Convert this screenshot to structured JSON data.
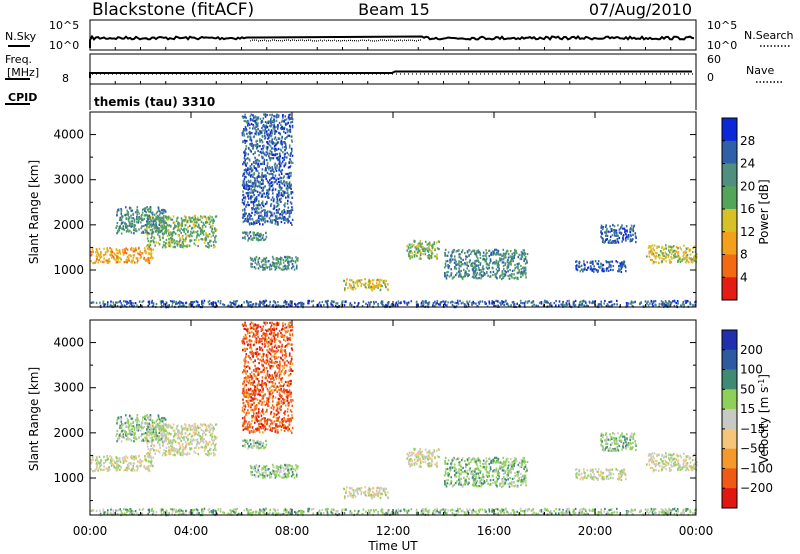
{
  "header": {
    "station": "Blackstone (fitACF)",
    "beam": "Beam 15",
    "date": "07/Aug/2010"
  },
  "noise_panel": {
    "left_label": "N.Sky",
    "right_label": "N.Search",
    "tick_top": "10^5",
    "tick_bottom": "10^0"
  },
  "freq_panel": {
    "left_label_1": "Freq.",
    "left_label_2": "[MHz]",
    "right_label": "Nave",
    "left_tick": "8",
    "right_tick_top": "60",
    "right_tick_bottom": "0"
  },
  "cpid_panel": {
    "label": "CPID",
    "text": "themis (tau) 3310"
  },
  "xaxis": {
    "label": "Time UT",
    "ticks": [
      "00:00",
      "04:00",
      "08:00",
      "12:00",
      "16:00",
      "20:00",
      "00:00"
    ]
  },
  "chart_data": [
    {
      "type": "heatmap",
      "variable": "Power",
      "ylabel": "Slant Range [km]",
      "ylim": [
        180,
        4500
      ],
      "yticks": [
        1000,
        2000,
        3000,
        4000
      ],
      "xlim_hours": [
        0,
        24
      ],
      "colorbar": {
        "label": "Power [dB]",
        "range": [
          0,
          32
        ],
        "ticks": [
          4,
          8,
          12,
          16,
          20,
          24,
          28
        ],
        "colors": [
          "#0b28d8",
          "#2e5fa8",
          "#4f8f7e",
          "#53a55a",
          "#d6c228",
          "#f5a01a",
          "#f46a14",
          "#e51c14"
        ]
      },
      "regions": [
        {
          "t0": 0.0,
          "t1": 2.5,
          "r0": 1150,
          "r1": 1500,
          "level": 5
        },
        {
          "t0": 2.2,
          "t1": 5.0,
          "r0": 1500,
          "r1": 2200,
          "level": 3
        },
        {
          "t0": 1.0,
          "t1": 3.0,
          "r0": 1800,
          "r1": 2400,
          "level": 2
        },
        {
          "t0": 6.0,
          "t1": 7.0,
          "r0": 1650,
          "r1": 1850,
          "level": 2
        },
        {
          "t0": 6.3,
          "t1": 8.2,
          "r0": 1000,
          "r1": 1300,
          "level": 2
        },
        {
          "t0": 10.0,
          "t1": 11.8,
          "r0": 550,
          "r1": 800,
          "level": 4
        },
        {
          "t0": 12.5,
          "t1": 13.8,
          "r0": 1250,
          "r1": 1650,
          "level": 3
        },
        {
          "t0": 14.0,
          "t1": 17.3,
          "r0": 800,
          "r1": 1450,
          "level": 2
        },
        {
          "t0": 19.2,
          "t1": 21.2,
          "r0": 950,
          "r1": 1200,
          "level": 1
        },
        {
          "t0": 20.2,
          "t1": 21.6,
          "r0": 1600,
          "r1": 2000,
          "level": 1
        },
        {
          "t0": 22.0,
          "t1": 24.0,
          "r0": 1150,
          "r1": 1550,
          "level": 4
        },
        {
          "t0": 0.0,
          "t1": 24.0,
          "r0": 180,
          "r1": 320,
          "level": 1
        },
        {
          "t0": 6.0,
          "t1": 8.0,
          "r0": 2000,
          "r1": 4450,
          "level": 1
        }
      ]
    },
    {
      "type": "heatmap",
      "variable": "Velocity",
      "ylabel": "Slant Range [km]",
      "ylim": [
        180,
        4500
      ],
      "yticks": [
        1000,
        2000,
        3000,
        4000
      ],
      "xlim_hours": [
        0,
        24
      ],
      "colorbar": {
        "label": "Velocity [m s^-1]",
        "ticks": [
          "200",
          "100",
          "50",
          "15",
          "-15",
          "-50",
          "-100",
          "-200"
        ],
        "colors": [
          "#1f2fae",
          "#2e5aa0",
          "#3f8a73",
          "#8fd05a",
          "#c9c9c4",
          "#f5c57a",
          "#f59a2a",
          "#f05a14",
          "#e11812"
        ]
      },
      "regions": [
        {
          "t0": 0.0,
          "t1": 2.5,
          "r0": 1150,
          "r1": 1500,
          "level": 4
        },
        {
          "t0": 2.2,
          "t1": 5.0,
          "r0": 1500,
          "r1": 2200,
          "level": 4
        },
        {
          "t0": 1.0,
          "t1": 3.0,
          "r0": 1800,
          "r1": 2400,
          "level": 3
        },
        {
          "t0": 6.0,
          "t1": 7.0,
          "r0": 1650,
          "r1": 1850,
          "level": 3
        },
        {
          "t0": 6.3,
          "t1": 8.2,
          "r0": 1000,
          "r1": 1300,
          "level": 3
        },
        {
          "t0": 10.0,
          "t1": 11.8,
          "r0": 550,
          "r1": 800,
          "level": 4
        },
        {
          "t0": 12.5,
          "t1": 13.8,
          "r0": 1250,
          "r1": 1650,
          "level": 4
        },
        {
          "t0": 14.0,
          "t1": 17.3,
          "r0": 800,
          "r1": 1450,
          "level": 3
        },
        {
          "t0": 19.2,
          "t1": 21.2,
          "r0": 950,
          "r1": 1200,
          "level": 4
        },
        {
          "t0": 20.2,
          "t1": 21.6,
          "r0": 1600,
          "r1": 2000,
          "level": 3
        },
        {
          "t0": 22.0,
          "t1": 24.0,
          "r0": 1150,
          "r1": 1550,
          "level": 4
        },
        {
          "t0": 0.0,
          "t1": 24.0,
          "r0": 180,
          "r1": 320,
          "level": 3
        },
        {
          "t0": 6.0,
          "t1": 8.0,
          "r0": 2000,
          "r1": 4450,
          "level": 7
        }
      ]
    }
  ]
}
